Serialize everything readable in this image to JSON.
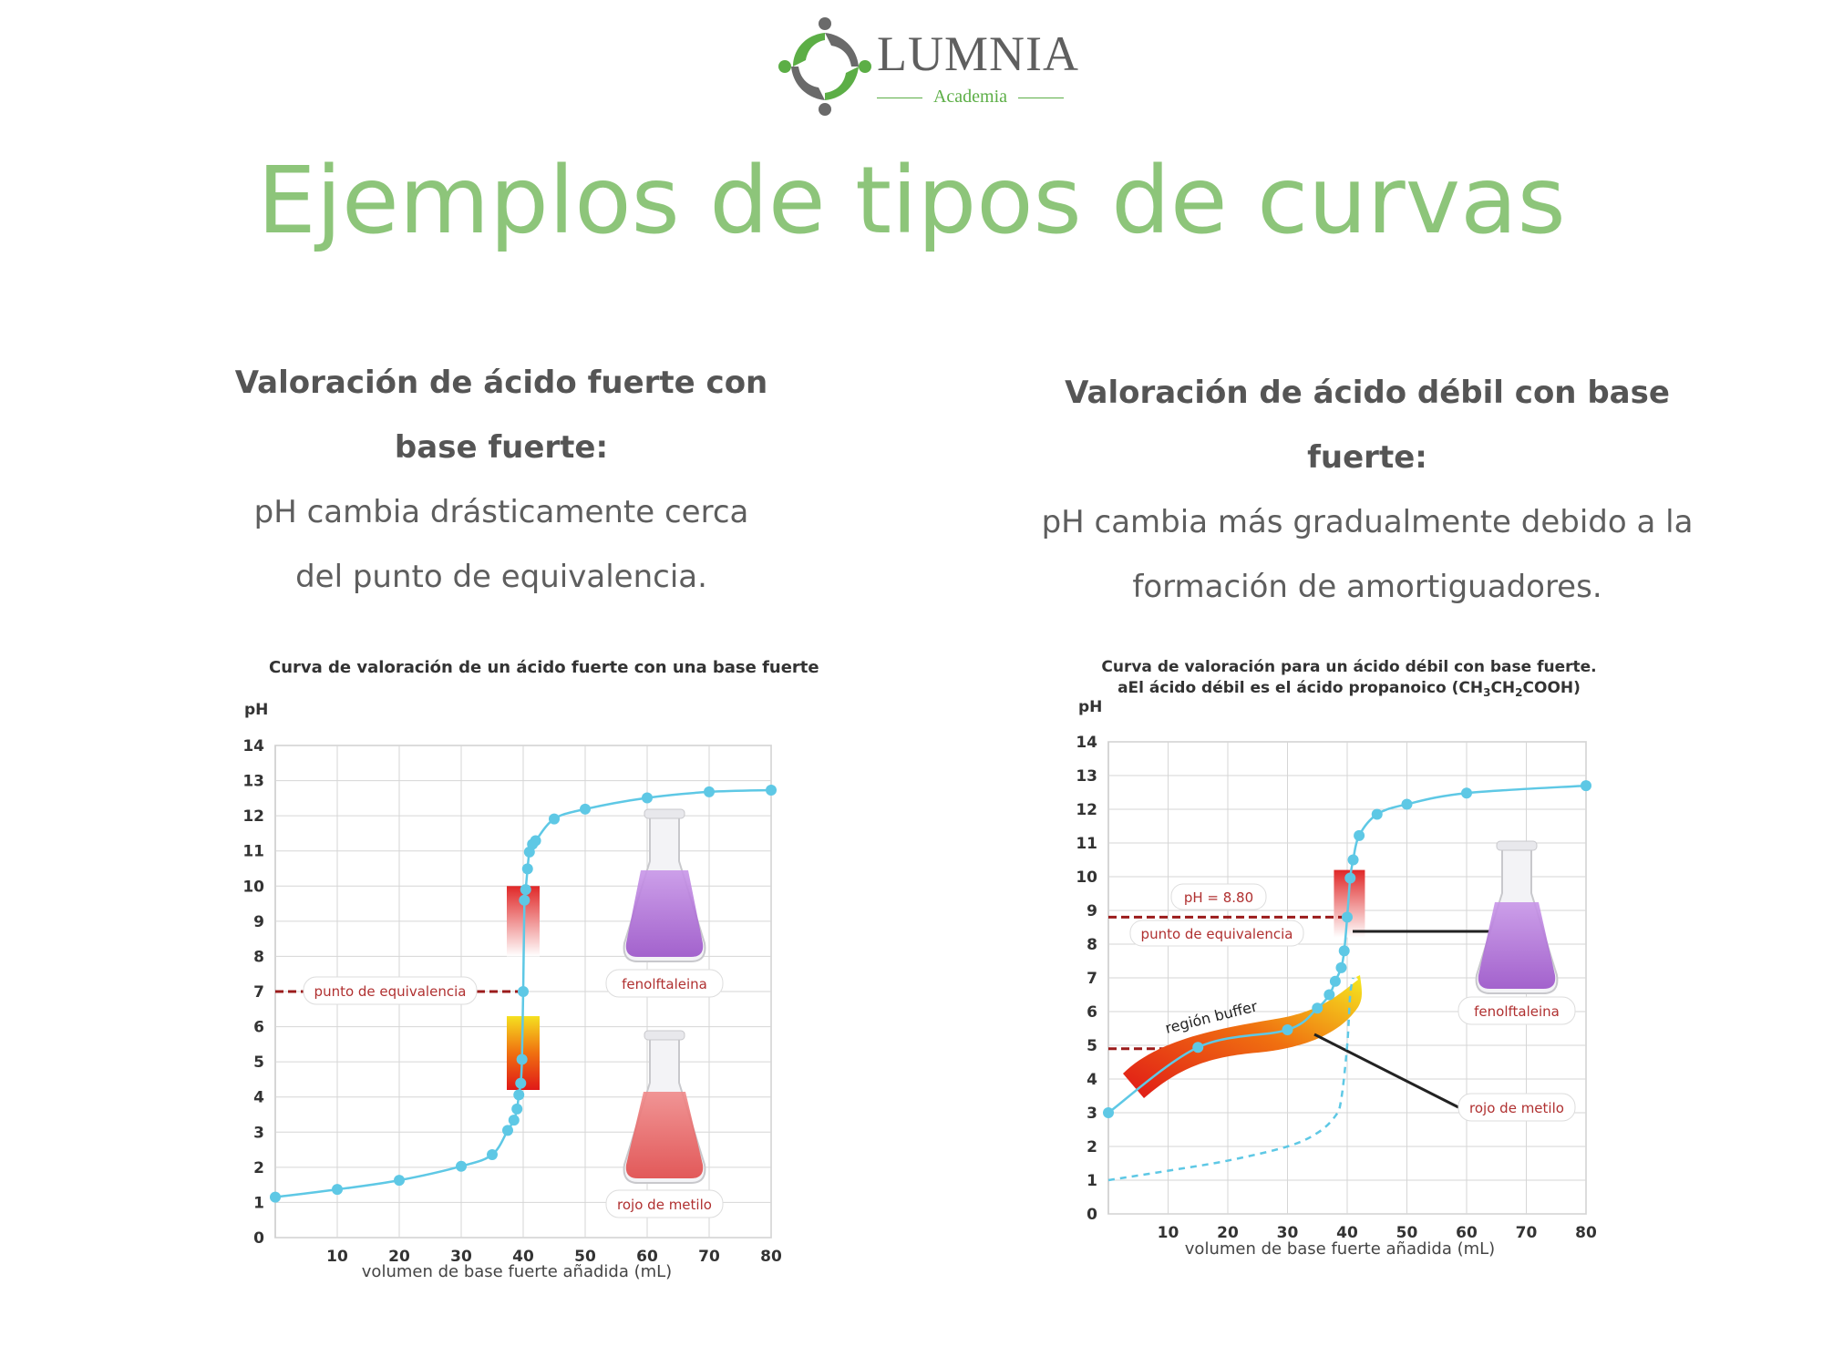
{
  "logo": {
    "name": "LUMNIA",
    "subtitle": "Academia",
    "icon": "recycling-people-logo-icon"
  },
  "title": "Ejemplos de tipos de curvas",
  "sections": [
    {
      "heading": "Valoración de ácido fuerte con base fuerte:",
      "body": "pH cambia drásticamente cerca del punto de equivalencia."
    },
    {
      "heading": "Valoración de ácido débil con base fuerte:",
      "body": "pH cambia más gradualmente debido a la formación de amortiguadores."
    }
  ],
  "chart_data": [
    {
      "type": "line",
      "title": "Curva de valoración de un ácido fuerte con una base fuerte",
      "xlabel": "volumen de base fuerte añadida (mL)",
      "ylabel": "pH",
      "xlim": [
        0,
        80
      ],
      "ylim": [
        0,
        14
      ],
      "xticks": [
        "10",
        "20",
        "30",
        "40",
        "50",
        "60",
        "70",
        "80"
      ],
      "yticks": [
        "0",
        "1",
        "2",
        "3",
        "4",
        "5",
        "6",
        "7",
        "8",
        "9",
        "10",
        "11",
        "12",
        "13",
        "14"
      ],
      "grid": true,
      "series": [
        {
          "x": [
            0,
            10,
            20,
            30,
            35,
            37.5,
            38.5,
            39,
            39.3,
            39.6,
            39.8,
            40,
            40.2,
            40.4,
            40.7,
            41,
            41.5,
            42,
            45,
            50,
            60,
            70,
            80
          ],
          "y": [
            1.15,
            1.37,
            1.63,
            2.03,
            2.36,
            3.05,
            3.34,
            3.66,
            4.06,
            4.39,
            5.07,
            7.0,
            9.6,
            9.9,
            10.49,
            10.97,
            11.19,
            11.29,
            11.91,
            12.19,
            12.51,
            12.68,
            12.73
          ],
          "color": "#5ec8e5"
        }
      ],
      "annotations": [
        {
          "text": "punto de equivalencia",
          "at": [
            40,
            7
          ]
        },
        {
          "text": "fenolftaleina",
          "indicator_range": [
            8.2,
            10
          ]
        },
        {
          "text": "rojo de metilo",
          "indicator_range": [
            4.2,
            6.2
          ]
        }
      ]
    },
    {
      "type": "line",
      "title": "Curva de valoración para un ácido débil con base fuerte. aEl ácido débil es el ácido propanoico (CH3CH2COOH)",
      "xlabel": "volumen de base fuerte añadida (mL)",
      "ylabel": "pH",
      "xlim": [
        0,
        80
      ],
      "ylim": [
        0,
        14
      ],
      "xticks": [
        "10",
        "20",
        "30",
        "40",
        "50",
        "60",
        "70",
        "80"
      ],
      "yticks": [
        "0",
        "1",
        "2",
        "3",
        "4",
        "5",
        "6",
        "7",
        "8",
        "9",
        "10",
        "11",
        "12",
        "13",
        "14"
      ],
      "grid": true,
      "series": [
        {
          "x": [
            0,
            15,
            30,
            35,
            37,
            38,
            39,
            39.5,
            40,
            40.5,
            41,
            42,
            45,
            50,
            60,
            80
          ],
          "y": [
            3.0,
            4.94,
            5.46,
            6.1,
            6.5,
            6.9,
            7.3,
            7.8,
            8.8,
            9.96,
            10.5,
            11.22,
            11.85,
            12.15,
            12.48,
            12.7
          ],
          "color": "#5ec8e5",
          "dashed": false
        },
        {
          "x": [
            0,
            10,
            20,
            30,
            35,
            38,
            39,
            40,
            40.5,
            41
          ],
          "y": [
            1.0,
            1.28,
            1.58,
            2.0,
            2.4,
            2.9,
            3.4,
            5.0,
            6.5,
            7.0
          ],
          "color": "#5ec8e5",
          "dashed": true
        }
      ],
      "annotations": [
        {
          "text": "pH = 8.80",
          "at": [
            40,
            8.8
          ]
        },
        {
          "text": "punto de equivalencia",
          "at": [
            40,
            8.8
          ]
        },
        {
          "text": "región buffer",
          "indicator_range": [
            4.5,
            6.5
          ]
        },
        {
          "text": "fenolftaleina",
          "indicator_range": [
            8.2,
            10
          ]
        },
        {
          "text": "rojo de metilo",
          "indicator_range": [
            4.2,
            6.2
          ]
        }
      ]
    }
  ],
  "chart_texts": {
    "c1": {
      "title": "Curva de valoración de un ácido fuerte con una base fuerte",
      "ylabel": "pH",
      "xlabel": "volumen de base fuerte añadida (mL)",
      "eq": "punto de equivalencia",
      "flask_top": "fenolftaleina",
      "flask_bottom": "rojo de metilo"
    },
    "c2": {
      "title_line1": "Curva de valoración para un ácido débil con base fuerte.",
      "title_line2_a": "aEl ácido débil es el ácido propanoico (CH",
      "sub3": "3",
      "ch": "CH",
      "sub2": "2",
      "title_line2_b": "COOH)",
      "ylabel": "pH",
      "xlabel": "volumen de base fuerte añadida (mL)",
      "ph_label": "pH = 8.80",
      "eq": "punto de equivalencia",
      "buffer": "región buffer",
      "flask": "fenolftaleina",
      "methyl": "rojo de metilo"
    }
  },
  "colors": {
    "title_green": "#8dc57a",
    "curve": "#5ec8e5",
    "dashed_red": "#9b1b1b",
    "label_red": "#b03030",
    "logo_green": "#5cae46",
    "logo_grey": "#5f5f5f"
  }
}
